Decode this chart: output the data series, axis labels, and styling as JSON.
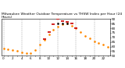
{
  "title": "Milwaukee Weather Outdoor Temperature vs THSW Index per Hour (24 Hours)",
  "hours": [
    0,
    1,
    2,
    3,
    4,
    5,
    6,
    7,
    8,
    9,
    10,
    11,
    12,
    13,
    14,
    15,
    16,
    17,
    18,
    19,
    20,
    21,
    22,
    23
  ],
  "temp_f": [
    58,
    57,
    56,
    55,
    54,
    53,
    53,
    56,
    62,
    67,
    73,
    78,
    82,
    84,
    85,
    83,
    80,
    76,
    72,
    69,
    66,
    64,
    62,
    60
  ],
  "thsw": [
    null,
    null,
    null,
    null,
    null,
    null,
    null,
    null,
    null,
    68,
    76,
    84,
    90,
    88,
    87,
    85,
    80,
    null,
    null,
    null,
    null,
    null,
    null,
    null
  ],
  "hi_temp": [
    null,
    null,
    null,
    null,
    null,
    null,
    null,
    null,
    null,
    null,
    null,
    null,
    85,
    85,
    85,
    null,
    null,
    null,
    null,
    null,
    null,
    null,
    null,
    null
  ],
  "ylim": [
    50,
    90
  ],
  "ytick_vals": [
    50,
    55,
    60,
    65,
    70,
    75,
    80,
    85,
    90
  ],
  "bg_color": "#ffffff",
  "temp_color": "#ff8800",
  "thsw_color": "#cc0000",
  "hi_color": "#000000",
  "grid_color": "#888888",
  "title_color": "#000000",
  "title_fontsize": 3.2,
  "tick_fontsize": 3.0,
  "grid_x": [
    0,
    4,
    8,
    12,
    16,
    20
  ]
}
